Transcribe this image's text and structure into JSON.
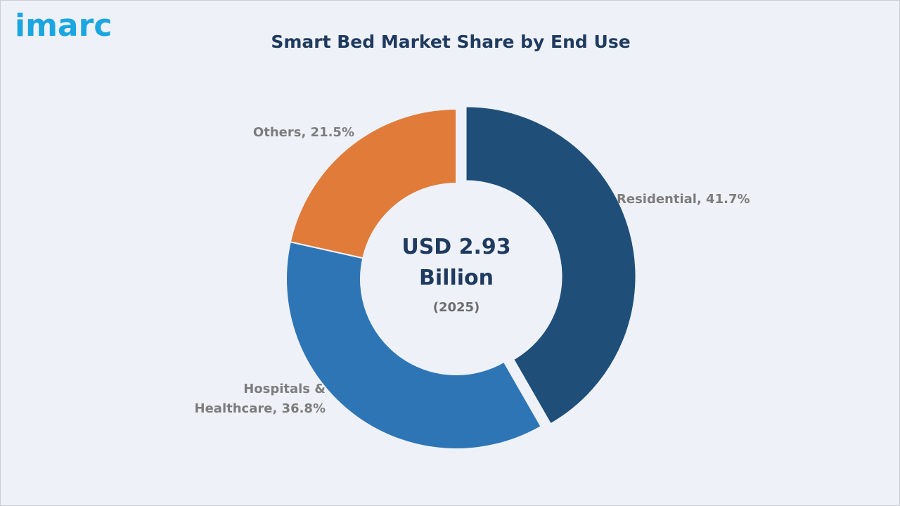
{
  "brand": {
    "logo_text": "imarc",
    "logo_color": "#1ba6e0"
  },
  "chart_data": {
    "type": "pie",
    "title": "Smart Bed Market Share by End Use",
    "center_text": {
      "line1": "USD 2.93",
      "line2": "Billion",
      "line3": "(2025)"
    },
    "slices": [
      {
        "label": "Residential",
        "value": 41.7,
        "color": "#1f4e79",
        "display": [
          "Residential, 41.7%"
        ],
        "exploded": true
      },
      {
        "label": "Hospitals & Healthcare",
        "value": 36.8,
        "color": "#2e75b6",
        "display": [
          "Hospitals &",
          "Healthcare, 36.8%"
        ],
        "exploded": false
      },
      {
        "label": "Others",
        "value": 21.5,
        "color": "#e07b39",
        "display": [
          "Others, 21.5%"
        ],
        "exploded": false
      }
    ],
    "legend": "none",
    "style": "donut"
  }
}
